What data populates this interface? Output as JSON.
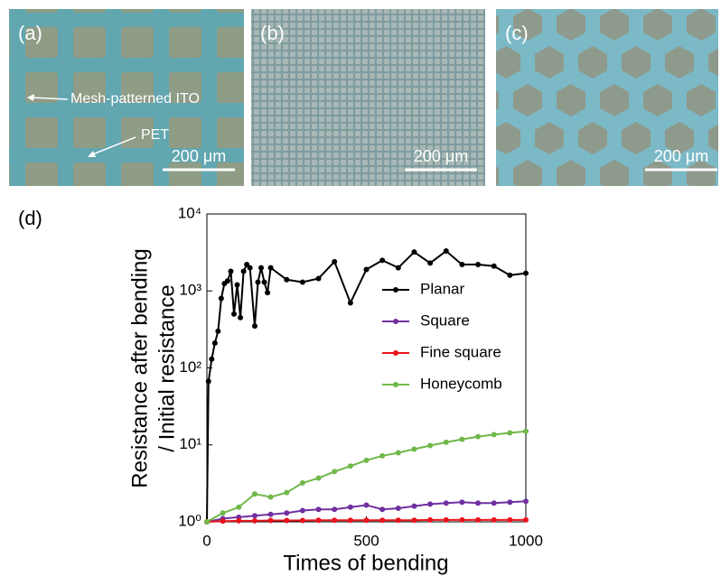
{
  "panels": {
    "a": {
      "label": "(a)",
      "annotations": [
        "Mesh-patterned ITO",
        "PET"
      ],
      "scale_bar": "200 μm"
    },
    "b": {
      "label": "(b)",
      "scale_bar": "200 μm"
    },
    "c": {
      "label": "(c)",
      "scale_bar": "200 μm"
    },
    "d": {
      "label": "(d)"
    }
  },
  "chart_data": {
    "type": "line",
    "xlabel": "Times of bending",
    "ylabel": [
      "Resistance after bending",
      "/ Initial resistance"
    ],
    "xlim": [
      0,
      1000
    ],
    "xticks": [
      0,
      500,
      1000
    ],
    "ylim": [
      1,
      10000
    ],
    "log_y": true,
    "yticks": [
      {
        "value": 1,
        "label": "10⁰"
      },
      {
        "value": 10,
        "label": "10¹"
      },
      {
        "value": 100,
        "label": "10²"
      },
      {
        "value": 1000,
        "label": "10³"
      },
      {
        "value": 10000,
        "label": "10⁴"
      }
    ],
    "series": [
      {
        "name": "Planar",
        "color": "#000000",
        "x": [
          0,
          5,
          15,
          25,
          35,
          45,
          55,
          65,
          75,
          85,
          95,
          105,
          115,
          125,
          135,
          150,
          160,
          170,
          180,
          190,
          200,
          250,
          300,
          350,
          400,
          450,
          500,
          550,
          600,
          650,
          700,
          750,
          800,
          850,
          900,
          950,
          1000
        ],
        "values": [
          1,
          67,
          130,
          210,
          300,
          800,
          1250,
          1350,
          1800,
          500,
          1200,
          450,
          1800,
          2200,
          2000,
          350,
          1300,
          2000,
          1300,
          950,
          2000,
          1400,
          1300,
          1450,
          2400,
          700,
          1900,
          2500,
          2000,
          3200,
          2300,
          3300,
          2200,
          2200,
          2100,
          1600,
          1700
        ]
      },
      {
        "name": "Square",
        "color": "#7030a0",
        "x": [
          0,
          50,
          100,
          150,
          200,
          250,
          300,
          350,
          400,
          450,
          500,
          550,
          600,
          650,
          700,
          750,
          800,
          850,
          900,
          950,
          1000
        ],
        "values": [
          1.0,
          1.1,
          1.15,
          1.2,
          1.25,
          1.3,
          1.4,
          1.45,
          1.45,
          1.55,
          1.65,
          1.45,
          1.5,
          1.6,
          1.7,
          1.75,
          1.8,
          1.75,
          1.75,
          1.8,
          1.85
        ]
      },
      {
        "name": "Fine square",
        "color": "#e8141c",
        "x": [
          0,
          50,
          100,
          150,
          200,
          250,
          300,
          350,
          400,
          450,
          500,
          550,
          600,
          650,
          700,
          750,
          800,
          850,
          900,
          950,
          1000
        ],
        "values": [
          1.0,
          1.02,
          1.03,
          1.03,
          1.04,
          1.04,
          1.04,
          1.05,
          1.05,
          1.05,
          1.05,
          1.05,
          1.05,
          1.05,
          1.06,
          1.06,
          1.06,
          1.06,
          1.06,
          1.06,
          1.06
        ]
      },
      {
        "name": "Honeycomb",
        "color": "#70b84a",
        "x": [
          0,
          50,
          100,
          150,
          200,
          250,
          300,
          350,
          400,
          450,
          500,
          550,
          600,
          650,
          700,
          750,
          800,
          850,
          900,
          950,
          1000
        ],
        "values": [
          1.0,
          1.3,
          1.55,
          2.3,
          2.1,
          2.4,
          3.2,
          3.7,
          4.5,
          5.3,
          6.3,
          7.2,
          7.9,
          8.8,
          9.8,
          10.8,
          11.8,
          12.8,
          13.6,
          14.3,
          15
        ]
      }
    ]
  }
}
